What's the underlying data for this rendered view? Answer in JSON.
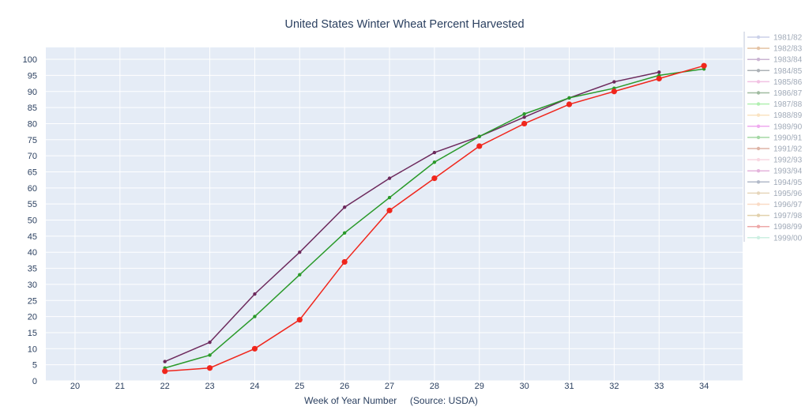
{
  "chart_data": {
    "type": "line",
    "title": "United States Winter Wheat Percent Harvested",
    "xlabel": "Week of Year Number     (Source: USDA)",
    "ylabel": "",
    "xlim": [
      19.35,
      34.86
    ],
    "ylim": [
      0,
      103.7
    ],
    "x_ticks": [
      20,
      21,
      22,
      23,
      24,
      25,
      26,
      27,
      28,
      29,
      30,
      31,
      32,
      33,
      34
    ],
    "y_ticks": [
      0,
      5,
      10,
      15,
      20,
      25,
      30,
      35,
      40,
      45,
      50,
      55,
      60,
      65,
      70,
      75,
      80,
      85,
      90,
      95,
      100
    ],
    "grid": true,
    "legend_position": "right",
    "plot_bgcolor": "#e5ecf6",
    "grid_color": "#ffffff",
    "series": [
      {
        "color": "#6d2a5d",
        "x": [
          22,
          23,
          24,
          25,
          26,
          27,
          28,
          29,
          30,
          31,
          32,
          33
        ],
        "y": [
          6,
          12,
          27,
          40,
          54,
          63,
          71,
          76,
          82,
          88,
          93,
          96
        ]
      },
      {
        "color": "#2a9a2a",
        "x": [
          22,
          23,
          24,
          25,
          26,
          27,
          28,
          29,
          30,
          31,
          32,
          33,
          34
        ],
        "y": [
          4,
          8,
          20,
          33,
          46,
          57,
          68,
          76,
          83,
          88,
          91,
          95,
          97
        ]
      },
      {
        "color": "#f0261c",
        "x": [
          22,
          23,
          24,
          25,
          26,
          27,
          28,
          29,
          30,
          31,
          32,
          33,
          34
        ],
        "y": [
          3,
          4,
          10,
          19,
          37,
          53,
          63,
          73,
          80,
          86,
          90,
          94,
          98
        ]
      }
    ],
    "legend": [
      {
        "label": "1981/82",
        "color": "#8e9bd0",
        "hidden": true
      },
      {
        "label": "1982/83",
        "color": "#c77b3a",
        "hidden": true
      },
      {
        "label": "1983/84",
        "color": "#8e5b9e",
        "hidden": true
      },
      {
        "label": "1984/85",
        "color": "#4a5560",
        "hidden": true
      },
      {
        "label": "1985/86",
        "color": "#e377c2",
        "hidden": true
      },
      {
        "label": "1986/87",
        "color": "#2f6b2f",
        "hidden": true
      },
      {
        "label": "1987/88",
        "color": "#55dd55",
        "hidden": true
      },
      {
        "label": "1988/89",
        "color": "#f5c27a",
        "hidden": true
      },
      {
        "label": "1989/90",
        "color": "#dd44dd",
        "hidden": true
      },
      {
        "label": "1990/91",
        "color": "#3aaa3a",
        "hidden": true
      },
      {
        "label": "1991/92",
        "color": "#b85a3a",
        "hidden": true
      },
      {
        "label": "1992/93",
        "color": "#f0a8c0",
        "hidden": true
      },
      {
        "label": "1993/94",
        "color": "#c45ab3",
        "hidden": true
      },
      {
        "label": "1994/95",
        "color": "#56688a",
        "hidden": true
      },
      {
        "label": "1995/96",
        "color": "#c9a56a",
        "hidden": true
      },
      {
        "label": "1996/97",
        "color": "#f4b183",
        "hidden": true
      },
      {
        "label": "1997/98",
        "color": "#bf9a4a",
        "hidden": true
      },
      {
        "label": "1998/99",
        "color": "#d94040",
        "hidden": true
      },
      {
        "label": "1999/00",
        "color": "#8fdcc0",
        "hidden": true
      }
    ]
  }
}
